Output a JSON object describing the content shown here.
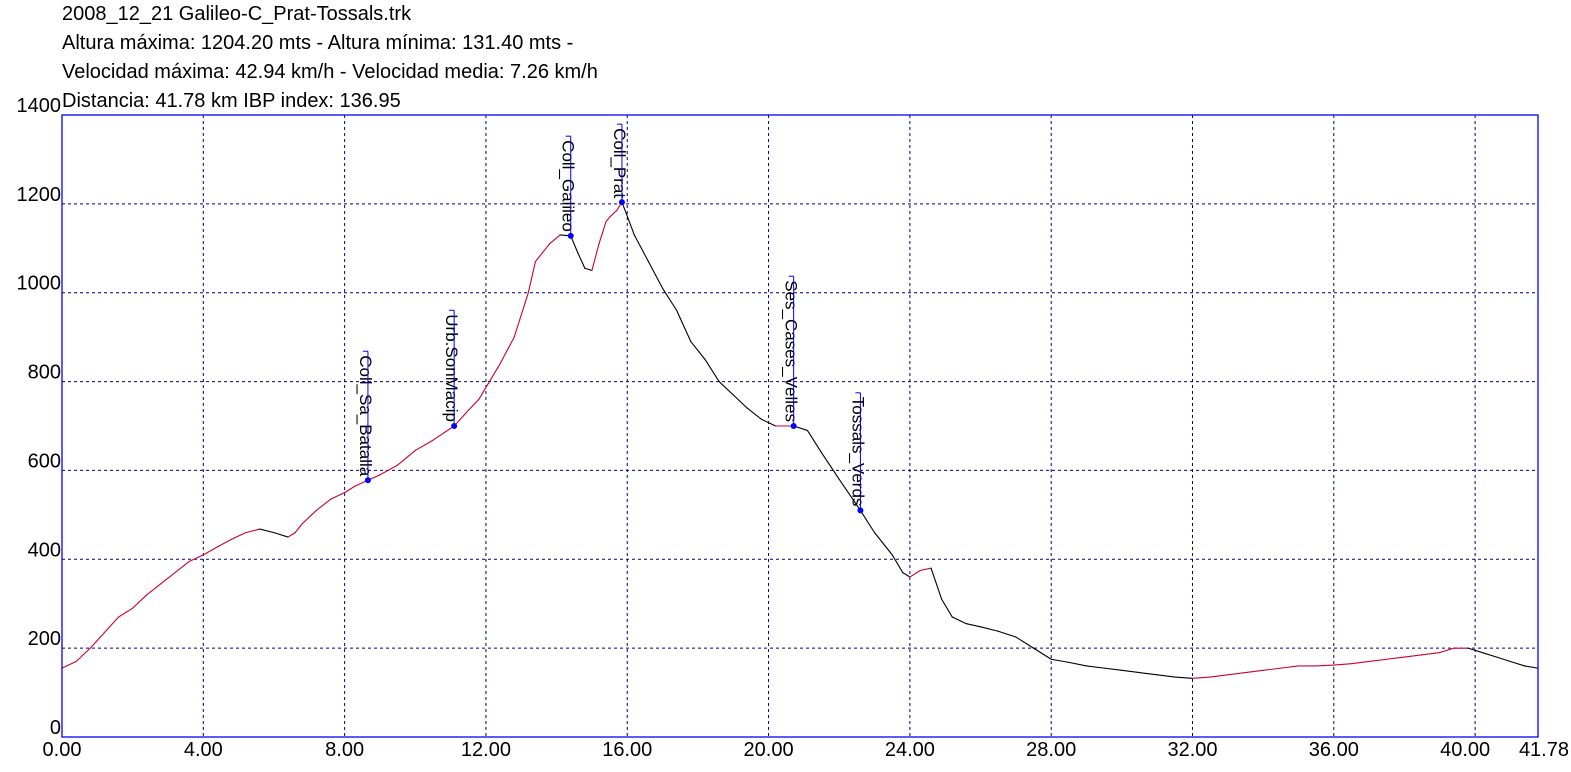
{
  "header": {
    "file_name": "2008_12_21 Galileo-C_Prat-Tossals.trk",
    "line_altitude": "Altura máxima: 1204.20 mts - Altura mínima: 131.40 mts -",
    "line_speed": "Velocidad máxima: 42.94 km/h - Velocidad media: 7.26 km/h",
    "line_distance": "Distancia: 41.78 km IBP index: 136.95"
  },
  "chart_data": {
    "type": "line",
    "title": "",
    "xlabel": "",
    "ylabel": "",
    "xlim": [
      0,
      41.78
    ],
    "ylim": [
      0,
      1400
    ],
    "grid": true,
    "x_tick_labels": [
      "0.00",
      "4.00",
      "8.00",
      "12.00",
      "16.00",
      "20.00",
      "24.00",
      "28.00",
      "32.00",
      "36.00",
      "40.00",
      "41.78"
    ],
    "x_ticks": [
      0,
      4,
      8,
      12,
      16,
      20,
      24,
      28,
      32,
      36,
      40,
      41.78
    ],
    "y_tick_labels": [
      "0",
      "200",
      "400",
      "600",
      "800",
      "1000",
      "1200",
      "1400"
    ],
    "y_ticks": [
      0,
      200,
      400,
      600,
      800,
      1000,
      1200,
      1400
    ],
    "colors": {
      "frame": "#0000ff",
      "grid": "#000080",
      "climb": "#cc0033",
      "descent": "#000000",
      "waypoint": "#0000ff"
    },
    "series": [
      {
        "x": [
          0,
          0.4,
          0.8,
          1.2,
          1.6,
          2.0,
          2.4,
          2.8,
          3.2,
          3.6,
          4.0,
          4.4,
          4.8,
          5.2,
          5.6,
          6.0,
          6.4,
          6.6,
          6.8,
          7.2,
          7.6,
          8.0,
          8.3,
          8.66,
          9.0,
          9.5,
          10.0,
          10.5,
          11.1,
          11.5,
          11.8,
          12.1,
          12.4,
          12.8,
          13.2,
          13.4,
          13.6,
          13.8,
          14.1,
          14.4,
          14.6,
          14.8,
          15.0,
          15.2,
          15.4,
          15.5,
          15.7,
          15.85,
          16.2,
          16.6,
          17.0,
          17.4,
          17.8,
          18.2,
          18.6,
          19.0,
          19.4,
          19.8,
          20.2,
          20.71,
          21.1,
          21.5,
          22.0,
          22.6,
          23.0,
          23.5,
          23.8,
          24.0,
          24.3,
          24.6,
          24.9,
          25.2,
          25.6,
          26.0,
          26.5,
          27.0,
          27.5,
          28.0,
          28.5,
          29.0,
          29.5,
          30.0,
          30.5,
          31.0,
          31.5,
          32.0,
          32.5,
          33.0,
          33.5,
          34.0,
          34.5,
          35.0,
          35.5,
          36.0,
          36.5,
          37.0,
          37.5,
          38.0,
          38.5,
          39.0,
          39.4,
          39.8,
          40.2,
          40.6,
          41.0,
          41.4,
          41.78
        ],
        "y": [
          155,
          170,
          200,
          235,
          270,
          290,
          320,
          345,
          370,
          395,
          410,
          428,
          445,
          460,
          468,
          460,
          450,
          460,
          480,
          510,
          535,
          550,
          565,
          578,
          590,
          612,
          645,
          668,
          700,
          735,
          760,
          800,
          840,
          900,
          1000,
          1070,
          1090,
          1110,
          1130,
          1128,
          1090,
          1055,
          1050,
          1110,
          1160,
          1170,
          1185,
          1204,
          1130,
          1070,
          1010,
          960,
          890,
          850,
          800,
          770,
          740,
          715,
          700,
          700,
          690,
          640,
          580,
          510,
          460,
          410,
          370,
          360,
          375,
          380,
          310,
          270,
          255,
          248,
          238,
          225,
          200,
          175,
          168,
          160,
          155,
          150,
          145,
          140,
          135,
          132,
          135,
          140,
          145,
          150,
          155,
          160,
          160,
          162,
          165,
          170,
          175,
          180,
          185,
          190,
          200,
          200,
          190,
          180,
          170,
          160,
          155
        ]
      }
    ],
    "waypoints": [
      {
        "name": "Coll_Sa_Batalla",
        "x": 8.66,
        "y": 578
      },
      {
        "name": "Urb.SonMacip",
        "x": 11.1,
        "y": 700
      },
      {
        "name": "Coll_Galileo",
        "x": 14.4,
        "y": 1128
      },
      {
        "name": "Coll_Prat",
        "x": 15.85,
        "y": 1204
      },
      {
        "name": "Ses_Cases_Velles",
        "x": 20.71,
        "y": 700
      },
      {
        "name": "Tossals_Verds",
        "x": 22.6,
        "y": 510
      }
    ]
  }
}
